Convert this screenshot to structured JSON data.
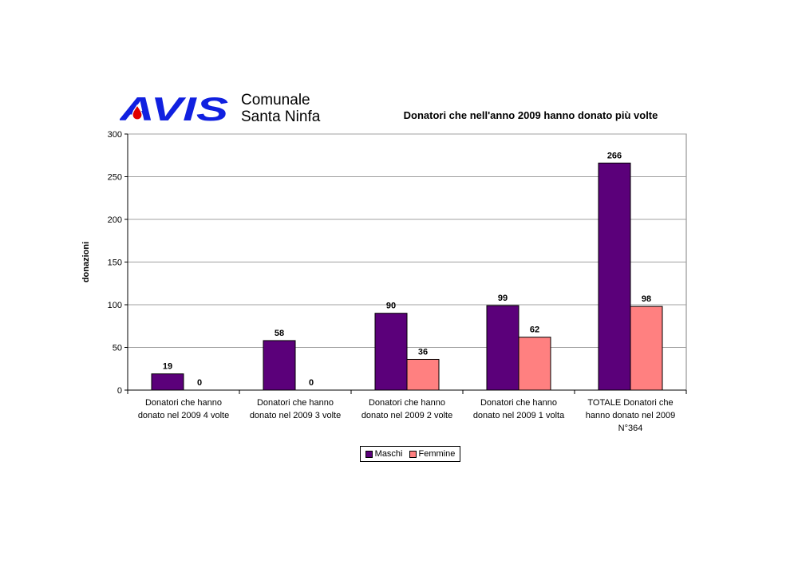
{
  "header": {
    "logo_text": "AVIS",
    "org_line1": "Comunale",
    "org_line2": "Santa Ninfa"
  },
  "colors": {
    "maschi": "#5b007a",
    "femmine": "#ff8080",
    "logo_blue": "#1020e0",
    "logo_red": "#e00000",
    "grid": "#a0a0a0"
  },
  "chart_data": {
    "type": "bar",
    "title": "Donatori che nell'anno 2009 hanno donato più volte",
    "ylabel": "donazioni",
    "xlabel": "",
    "ylim": [
      0,
      300
    ],
    "yticks": [
      "0",
      "50",
      "100",
      "150",
      "200",
      "250",
      "300"
    ],
    "ytick_values": [
      0,
      50,
      100,
      150,
      200,
      250,
      300
    ],
    "grid": true,
    "legend_position": "bottom",
    "categories": [
      [
        "Donatori che hanno",
        "donato nel 2009 4 volte"
      ],
      [
        "Donatori che hanno",
        "donato nel 2009 3 volte"
      ],
      [
        "Donatori che hanno",
        "donato nel 2009 2 volte"
      ],
      [
        "Donatori che hanno",
        "donato nel 2009 1 volta"
      ],
      [
        "TOTALE Donatori che",
        "hanno donato nel 2009",
        "N°364"
      ]
    ],
    "series": [
      {
        "name": "Maschi",
        "values": [
          19,
          58,
          90,
          99,
          266
        ]
      },
      {
        "name": "Femmine",
        "values": [
          0,
          0,
          36,
          62,
          98
        ]
      }
    ]
  }
}
